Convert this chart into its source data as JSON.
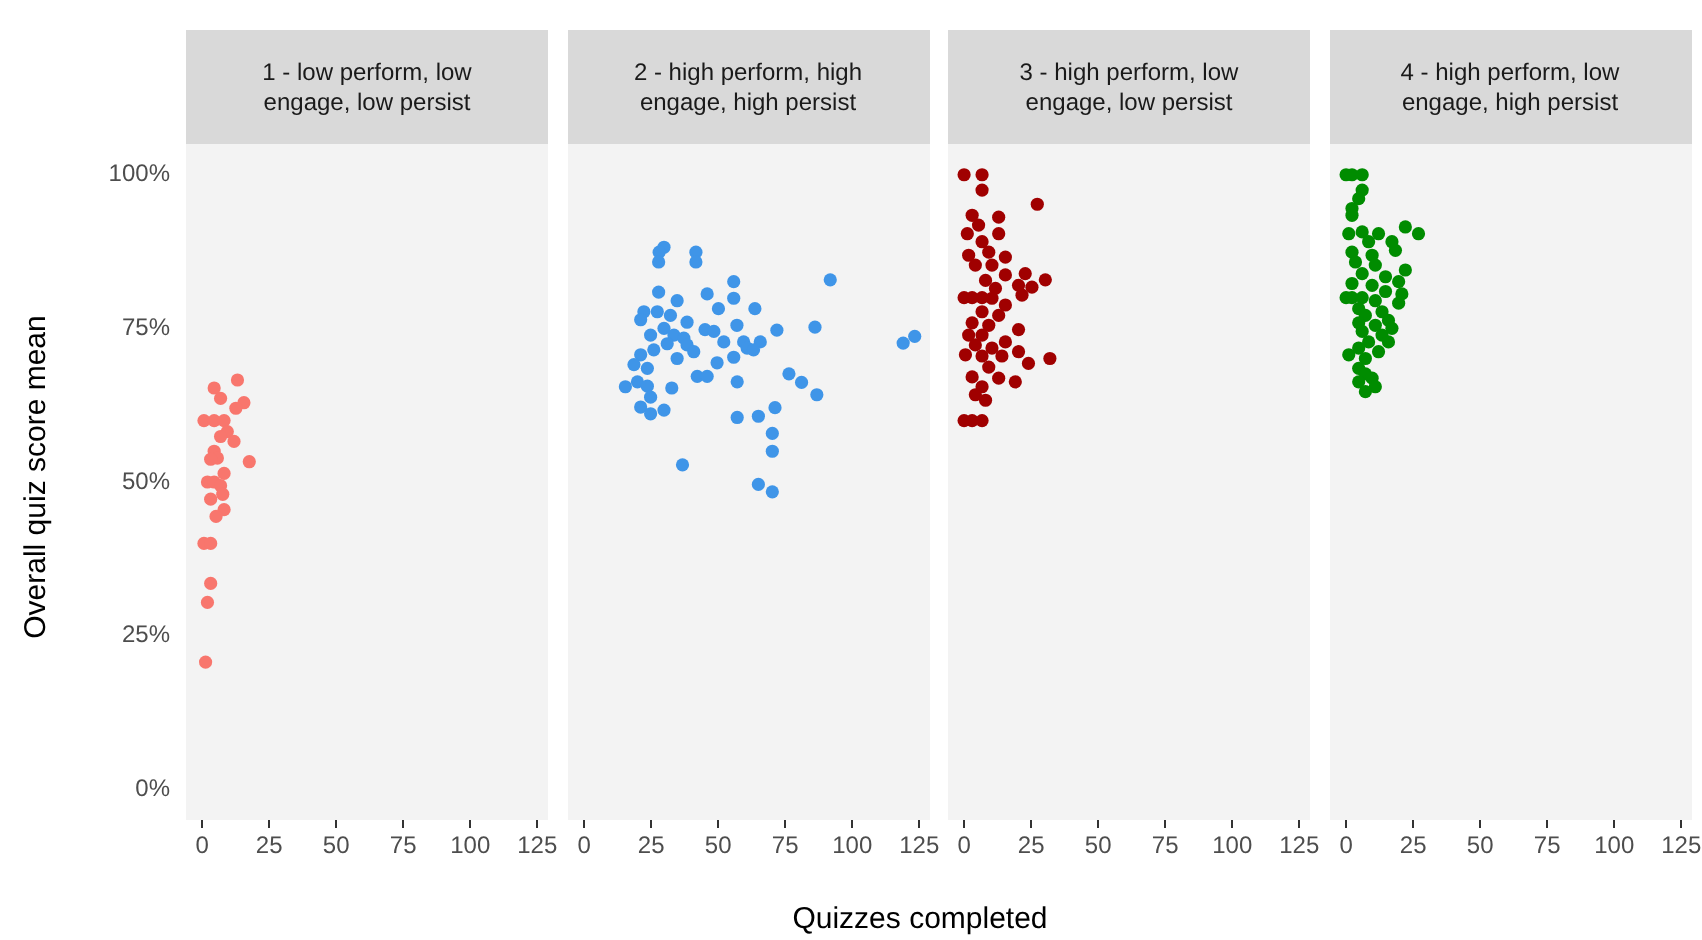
{
  "chart_data": [
    {
      "type": "scatter",
      "title": "1 - low perform, low engage, low persist",
      "ylabel": "Overall quiz score mean",
      "marker": "circle",
      "xlim": [
        -6,
        129
      ],
      "xticks": [
        0,
        25,
        50,
        75,
        100,
        125
      ],
      "ylim": [
        -5,
        105
      ],
      "yticks": [
        {
          "value": 0,
          "label": "0%"
        },
        {
          "value": 25,
          "label": "25%"
        },
        {
          "value": 50,
          "label": "50%"
        },
        {
          "value": 75,
          "label": "75%"
        },
        {
          "value": 100,
          "label": "100%"
        }
      ],
      "series": [
        {
          "color": "#f8766d",
          "x": [
            13.2,
            4.5,
            6.9,
            15.6,
            12.6,
            0.7,
            4.5,
            8.2,
            9.4,
            6.9,
            11.9,
            4.5,
            5.7,
            3.2,
            17.6,
            8.2,
            2,
            4.5,
            6.9,
            7.7,
            3.2,
            8.2,
            5.2,
            0.7,
            3.2,
            3.2,
            2,
            1.3
          ],
          "values": [
            66.6,
            65.3,
            63.6,
            62.9,
            62,
            60,
            60,
            60,
            58.2,
            57.4,
            56.6,
            55,
            53.9,
            53.7,
            53.3,
            51.4,
            50,
            50,
            49.4,
            48,
            47.2,
            45.5,
            44.4,
            40,
            40,
            33.5,
            30.4,
            20.7
          ]
        }
      ]
    },
    {
      "type": "scatter",
      "title": "2 - high perform, high engage, high persist",
      "xlabel": "Quizzes completed",
      "tick_labels": "x",
      "marker": "circle",
      "xlim": [
        -6,
        129
      ],
      "xticks": [
        0,
        25,
        50,
        75,
        100,
        125
      ],
      "ylim": [
        -5,
        105
      ],
      "series": [
        {
          "color": "#3f95e8",
          "x": [
            29.8,
            28,
            41.7,
            27.8,
            41.7,
            91.8,
            55.8,
            27.8,
            45.9,
            55.8,
            34.7,
            50.1,
            63.7,
            22.3,
            27.3,
            32.2,
            21.1,
            38.4,
            57,
            86.1,
            29.8,
            45.1,
            48.4,
            71.9,
            24.8,
            33.5,
            37.2,
            123.3,
            119,
            52.1,
            59.5,
            65.7,
            31,
            38.4,
            60.8,
            63.2,
            26,
            40.9,
            21.1,
            34.7,
            55.8,
            49.6,
            18.6,
            23.6,
            42.2,
            45.9,
            57.1,
            19.9,
            76.4,
            81.1,
            15.4,
            23.6,
            32.7,
            86.8,
            24.8,
            21.1,
            29.8,
            24.8,
            71.2,
            65,
            57.1,
            70.2,
            70.2,
            36.7,
            65,
            70.2
          ],
          "values": [
            88.2,
            87.4,
            87.4,
            85.8,
            85.8,
            82.9,
            82.6,
            80.9,
            80.6,
            79.9,
            79.5,
            78.2,
            78.2,
            77.7,
            77.7,
            77.1,
            76.4,
            76,
            75.5,
            75.2,
            75,
            74.8,
            74.5,
            74.7,
            73.9,
            73.9,
            73.4,
            73.7,
            72.6,
            72.8,
            72.8,
            72.8,
            72.5,
            72.3,
            71.8,
            71.5,
            71.5,
            71.2,
            70.7,
            70.1,
            70.3,
            69.4,
            69.1,
            68.5,
            67.2,
            67.2,
            66.3,
            66.3,
            67.6,
            66.2,
            65.5,
            65.6,
            65.3,
            64.2,
            63.8,
            62.2,
            61.7,
            61.1,
            62.1,
            60.7,
            60.5,
            57.9,
            55,
            52.8,
            49.6,
            48.4
          ]
        }
      ]
    },
    {
      "type": "scatter",
      "title": "3 - high perform, low engage, low persist",
      "tick_labels": "x",
      "marker": "circle",
      "xlim": [
        -6,
        129
      ],
      "xticks": [
        0,
        25,
        50,
        75,
        100,
        125
      ],
      "ylim": [
        -5,
        105
      ],
      "series": [
        {
          "color": "#a00000",
          "x": [
            0,
            6.7,
            6.7,
            27.3,
            3,
            12.9,
            5.4,
            1.2,
            12.9,
            6.7,
            9.2,
            1.7,
            15.4,
            4.2,
            10.4,
            15.4,
            22.8,
            30.3,
            8,
            20.3,
            25.3,
            11.7,
            0,
            3,
            6.7,
            21.6,
            10.4,
            15.4,
            6.7,
            12.9,
            3,
            9.2,
            20.3,
            1.7,
            6.7,
            15.4,
            4.2,
            10.4,
            20.3,
            0.5,
            6.7,
            14.1,
            32,
            24,
            9.2,
            3,
            12.9,
            19.1,
            6.7,
            4.2,
            8,
            0,
            3,
            6.7
          ],
          "values": [
            100,
            100,
            97.5,
            95.2,
            93.4,
            93.1,
            91.8,
            90.4,
            90.4,
            89.1,
            87.4,
            86.9,
            86.6,
            85.3,
            85.3,
            83.7,
            83.9,
            82.9,
            82.8,
            82,
            81.7,
            81.5,
            80,
            80,
            80,
            80.4,
            79.9,
            78.8,
            77.7,
            77.1,
            75.9,
            75.5,
            74.8,
            73.9,
            73.9,
            72.8,
            72.3,
            71.8,
            71.2,
            70.7,
            70.5,
            70.5,
            70.1,
            69.3,
            68.7,
            67.1,
            66.9,
            66.3,
            65.5,
            64.2,
            63.3,
            60,
            60,
            60
          ]
        }
      ]
    },
    {
      "type": "scatter",
      "title": "4 - high perform, low engage, high persist",
      "tick_labels": "x",
      "marker": "circle",
      "xlim": [
        -6,
        129
      ],
      "xticks": [
        0,
        25,
        50,
        75,
        100,
        125
      ],
      "ylim": [
        -5,
        105
      ],
      "series": [
        {
          "color": "#008c00",
          "x": [
            0,
            2.2,
            6,
            6,
            4.7,
            2.2,
            2.2,
            22.1,
            27,
            1,
            6,
            12.1,
            8.4,
            17.1,
            2.2,
            9.7,
            18.4,
            3.5,
            10.9,
            22.1,
            6,
            14.7,
            19.6,
            2.2,
            9.7,
            0,
            2.2,
            6,
            14.7,
            20.8,
            10.9,
            19.6,
            4.7,
            13.4,
            7.2,
            15.8,
            4.7,
            10.9,
            17.1,
            6,
            13.4,
            8.4,
            15.8,
            4.7,
            12.1,
            1,
            7.2,
            4.7,
            7.2,
            9.7,
            4.7,
            10.9,
            7.2
          ],
          "values": [
            100,
            100,
            100,
            97.5,
            96.1,
            94.5,
            93.4,
            91.5,
            90.4,
            90.4,
            90.7,
            90.4,
            89.1,
            89.1,
            87.4,
            86.9,
            87.7,
            85.8,
            85.3,
            84.5,
            83.9,
            83.4,
            82.6,
            82.3,
            82,
            80,
            80,
            80,
            81,
            80.6,
            79.5,
            79.1,
            78.2,
            77.7,
            77.1,
            76.3,
            75.9,
            75.5,
            75,
            74.5,
            73.9,
            72.8,
            72.8,
            71.8,
            71.2,
            70.7,
            70.1,
            68.5,
            67.6,
            66.9,
            66.3,
            65.5,
            64.7
          ]
        }
      ]
    }
  ]
}
